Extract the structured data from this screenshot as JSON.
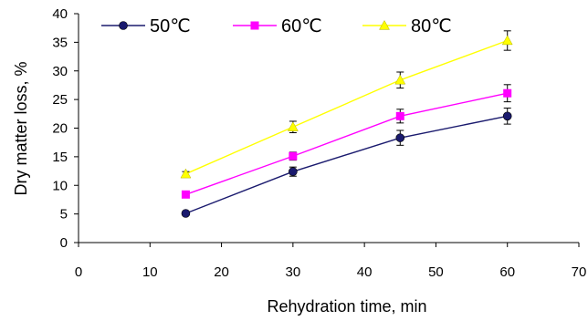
{
  "chart_data": {
    "type": "line",
    "title": "",
    "xlabel": "Rehydration time, min",
    "ylabel": "Dry matter loss, %",
    "xlim": [
      0,
      70
    ],
    "ylim": [
      0,
      40
    ],
    "x_ticks": [
      0,
      10,
      20,
      30,
      40,
      50,
      60,
      70
    ],
    "y_ticks": [
      0,
      5,
      10,
      15,
      20,
      25,
      30,
      35,
      40
    ],
    "grid": false,
    "legend_position": "top",
    "x": [
      15,
      30,
      45,
      60
    ],
    "series": [
      {
        "name": "50℃",
        "values": [
          5.1,
          12.4,
          18.3,
          22.1
        ],
        "errors": [
          0,
          0.8,
          1.3,
          1.4
        ],
        "color": "#1a1a6e",
        "marker": "circle"
      },
      {
        "name": "60℃",
        "values": [
          8.4,
          15.1,
          22.1,
          26.1
        ],
        "errors": [
          0,
          0.7,
          1.2,
          1.5
        ],
        "color": "#ff00ff",
        "marker": "square"
      },
      {
        "name": "80℃",
        "values": [
          12.0,
          20.2,
          28.4,
          35.3
        ],
        "errors": [
          0.4,
          1.0,
          1.4,
          1.7
        ],
        "color": "#ffff00",
        "marker": "triangle"
      }
    ]
  }
}
